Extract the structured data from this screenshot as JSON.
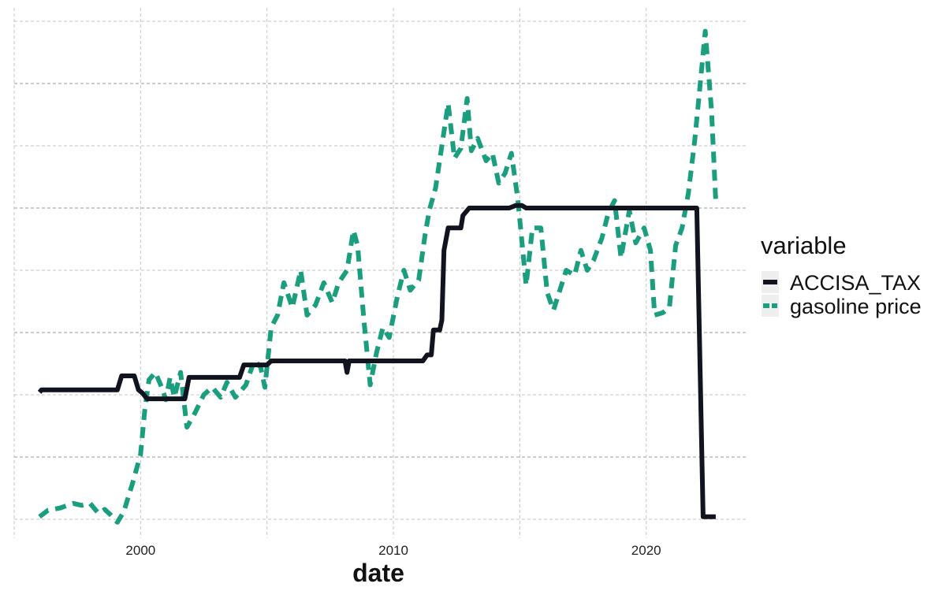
{
  "chart_data": {
    "type": "line",
    "xlabel": "date",
    "ylabel": "",
    "x_ticks": [
      "2000",
      "2010",
      "2020"
    ],
    "xlim": [
      "1995-01-01",
      "2024-01-01"
    ],
    "ylim": [
      0,
      100
    ],
    "grid": true,
    "y_tick_labels_shown": false,
    "legend": {
      "title": "variable",
      "position": "right",
      "entries": [
        "ACCISA_TAX",
        "gasoline price"
      ]
    },
    "series": [
      {
        "name": "ACCISA_TAX",
        "color": "#11141f",
        "line_style": "solid",
        "points": [
          [
            "1996-01-01",
            25.5
          ],
          [
            "1996-02-01",
            26.0
          ],
          [
            "1999-02-01",
            26.0
          ],
          [
            "1999-04-01",
            28.8
          ],
          [
            "1999-10-01",
            28.8
          ],
          [
            "1999-12-01",
            26.0
          ],
          [
            "2000-02-01",
            25.3
          ],
          [
            "2000-04-01",
            24.2
          ],
          [
            "2001-10-01",
            24.2
          ],
          [
            "2001-12-01",
            28.5
          ],
          [
            "2003-12-01",
            28.5
          ],
          [
            "2004-02-01",
            31.0
          ],
          [
            "2005-01-01",
            31.0
          ],
          [
            "2005-03-01",
            31.8
          ],
          [
            "2008-02-01",
            31.8
          ],
          [
            "2008-03-01",
            29.5
          ],
          [
            "2008-04-01",
            31.8
          ],
          [
            "2011-03-01",
            31.8
          ],
          [
            "2011-05-01",
            33.0
          ],
          [
            "2011-07-01",
            33.0
          ],
          [
            "2011-08-01",
            38.0
          ],
          [
            "2011-11-01",
            38.0
          ],
          [
            "2011-12-01",
            40.0
          ],
          [
            "2012-01-01",
            54.0
          ],
          [
            "2012-03-01",
            58.5
          ],
          [
            "2012-09-01",
            58.5
          ],
          [
            "2012-10-01",
            61.0
          ],
          [
            "2013-01-01",
            62.5
          ],
          [
            "2014-08-01",
            62.5
          ],
          [
            "2014-11-01",
            63.0
          ],
          [
            "2015-02-01",
            63.0
          ],
          [
            "2015-04-01",
            62.5
          ],
          [
            "2022-01-01",
            62.5
          ],
          [
            "2022-04-01",
            0.5
          ],
          [
            "2022-10-01",
            0.5
          ]
        ]
      },
      {
        "name": "gasoline price",
        "color": "#1b9e7e",
        "line_style": "dashed",
        "points": [
          [
            "1996-01-01",
            0.5
          ],
          [
            "1996-05-01",
            1.8
          ],
          [
            "1996-11-01",
            2.3
          ],
          [
            "1997-05-01",
            3.2
          ],
          [
            "1997-09-01",
            2.8
          ],
          [
            "1998-01-01",
            3.2
          ],
          [
            "1998-05-01",
            1.2
          ],
          [
            "1998-08-01",
            2.0
          ],
          [
            "1998-11-01",
            0.8
          ],
          [
            "1999-02-01",
            -0.6
          ],
          [
            "1999-05-01",
            1.5
          ],
          [
            "1999-09-01",
            7.0
          ],
          [
            "2000-01-01",
            13.0
          ],
          [
            "2000-03-01",
            22.0
          ],
          [
            "2000-05-01",
            28.0
          ],
          [
            "2000-08-01",
            29.5
          ],
          [
            "2000-11-01",
            26.5
          ],
          [
            "2001-01-01",
            24.0
          ],
          [
            "2001-03-01",
            28.5
          ],
          [
            "2001-05-01",
            24.5
          ],
          [
            "2001-08-01",
            29.5
          ],
          [
            "2001-11-01",
            18.5
          ],
          [
            "2002-03-01",
            21.5
          ],
          [
            "2002-07-01",
            25.0
          ],
          [
            "2002-11-01",
            26.5
          ],
          [
            "2003-03-01",
            24.5
          ],
          [
            "2003-06-01",
            27.5
          ],
          [
            "2003-10-01",
            24.5
          ],
          [
            "2004-03-01",
            27.0
          ],
          [
            "2004-07-01",
            32.0
          ],
          [
            "2004-10-01",
            30.5
          ],
          [
            "2004-12-01",
            26.5
          ],
          [
            "2005-03-01",
            38.5
          ],
          [
            "2005-06-01",
            41.0
          ],
          [
            "2005-09-01",
            47.5
          ],
          [
            "2006-01-01",
            42.5
          ],
          [
            "2006-05-01",
            50.0
          ],
          [
            "2006-08-01",
            41.0
          ],
          [
            "2006-12-01",
            43.0
          ],
          [
            "2007-04-01",
            47.5
          ],
          [
            "2007-08-01",
            43.5
          ],
          [
            "2007-11-01",
            47.5
          ],
          [
            "2008-03-01",
            50.0
          ],
          [
            "2008-06-01",
            58.0
          ],
          [
            "2008-08-01",
            55.0
          ],
          [
            "2008-11-01",
            40.0
          ],
          [
            "2009-02-01",
            27.0
          ],
          [
            "2009-05-01",
            33.5
          ],
          [
            "2009-08-01",
            38.5
          ],
          [
            "2009-11-01",
            36.5
          ],
          [
            "2010-03-01",
            45.0
          ],
          [
            "2010-06-01",
            50.0
          ],
          [
            "2010-09-01",
            46.0
          ],
          [
            "2011-01-01",
            48.0
          ],
          [
            "2011-04-01",
            57.0
          ],
          [
            "2011-06-01",
            62.0
          ],
          [
            "2011-09-01",
            66.5
          ],
          [
            "2011-12-01",
            75.0
          ],
          [
            "2012-03-01",
            83.5
          ],
          [
            "2012-06-01",
            72.5
          ],
          [
            "2012-09-01",
            74.5
          ],
          [
            "2012-12-01",
            84.5
          ],
          [
            "2013-02-01",
            74.0
          ],
          [
            "2013-05-01",
            76.5
          ],
          [
            "2013-09-01",
            72.0
          ],
          [
            "2013-12-01",
            73.5
          ],
          [
            "2014-03-01",
            67.5
          ],
          [
            "2014-06-01",
            69.5
          ],
          [
            "2014-09-01",
            73.5
          ],
          [
            "2014-12-01",
            64.5
          ],
          [
            "2015-04-01",
            47.0
          ],
          [
            "2015-07-01",
            58.5
          ],
          [
            "2015-11-01",
            58.5
          ],
          [
            "2016-02-01",
            45.5
          ],
          [
            "2016-05-01",
            42.0
          ],
          [
            "2016-08-01",
            46.0
          ],
          [
            "2016-11-01",
            50.0
          ],
          [
            "2017-03-01",
            49.0
          ],
          [
            "2017-06-01",
            54.0
          ],
          [
            "2017-09-01",
            50.0
          ],
          [
            "2017-12-01",
            52.0
          ],
          [
            "2018-04-01",
            56.5
          ],
          [
            "2018-07-01",
            61.5
          ],
          [
            "2018-10-01",
            64.0
          ],
          [
            "2019-01-01",
            52.5
          ],
          [
            "2019-05-01",
            62.0
          ],
          [
            "2019-08-01",
            55.5
          ],
          [
            "2019-12-01",
            58.5
          ],
          [
            "2020-03-01",
            54.0
          ],
          [
            "2020-05-01",
            41.0
          ],
          [
            "2020-09-01",
            41.5
          ],
          [
            "2020-12-01",
            42.5
          ],
          [
            "2021-03-01",
            55.0
          ],
          [
            "2021-06-01",
            58.5
          ],
          [
            "2021-09-01",
            65.5
          ],
          [
            "2021-12-01",
            76.0
          ],
          [
            "2022-03-01",
            89.0
          ],
          [
            "2022-05-01",
            98.0
          ],
          [
            "2022-08-01",
            82.0
          ],
          [
            "2022-10-01",
            64.0
          ]
        ]
      }
    ]
  }
}
